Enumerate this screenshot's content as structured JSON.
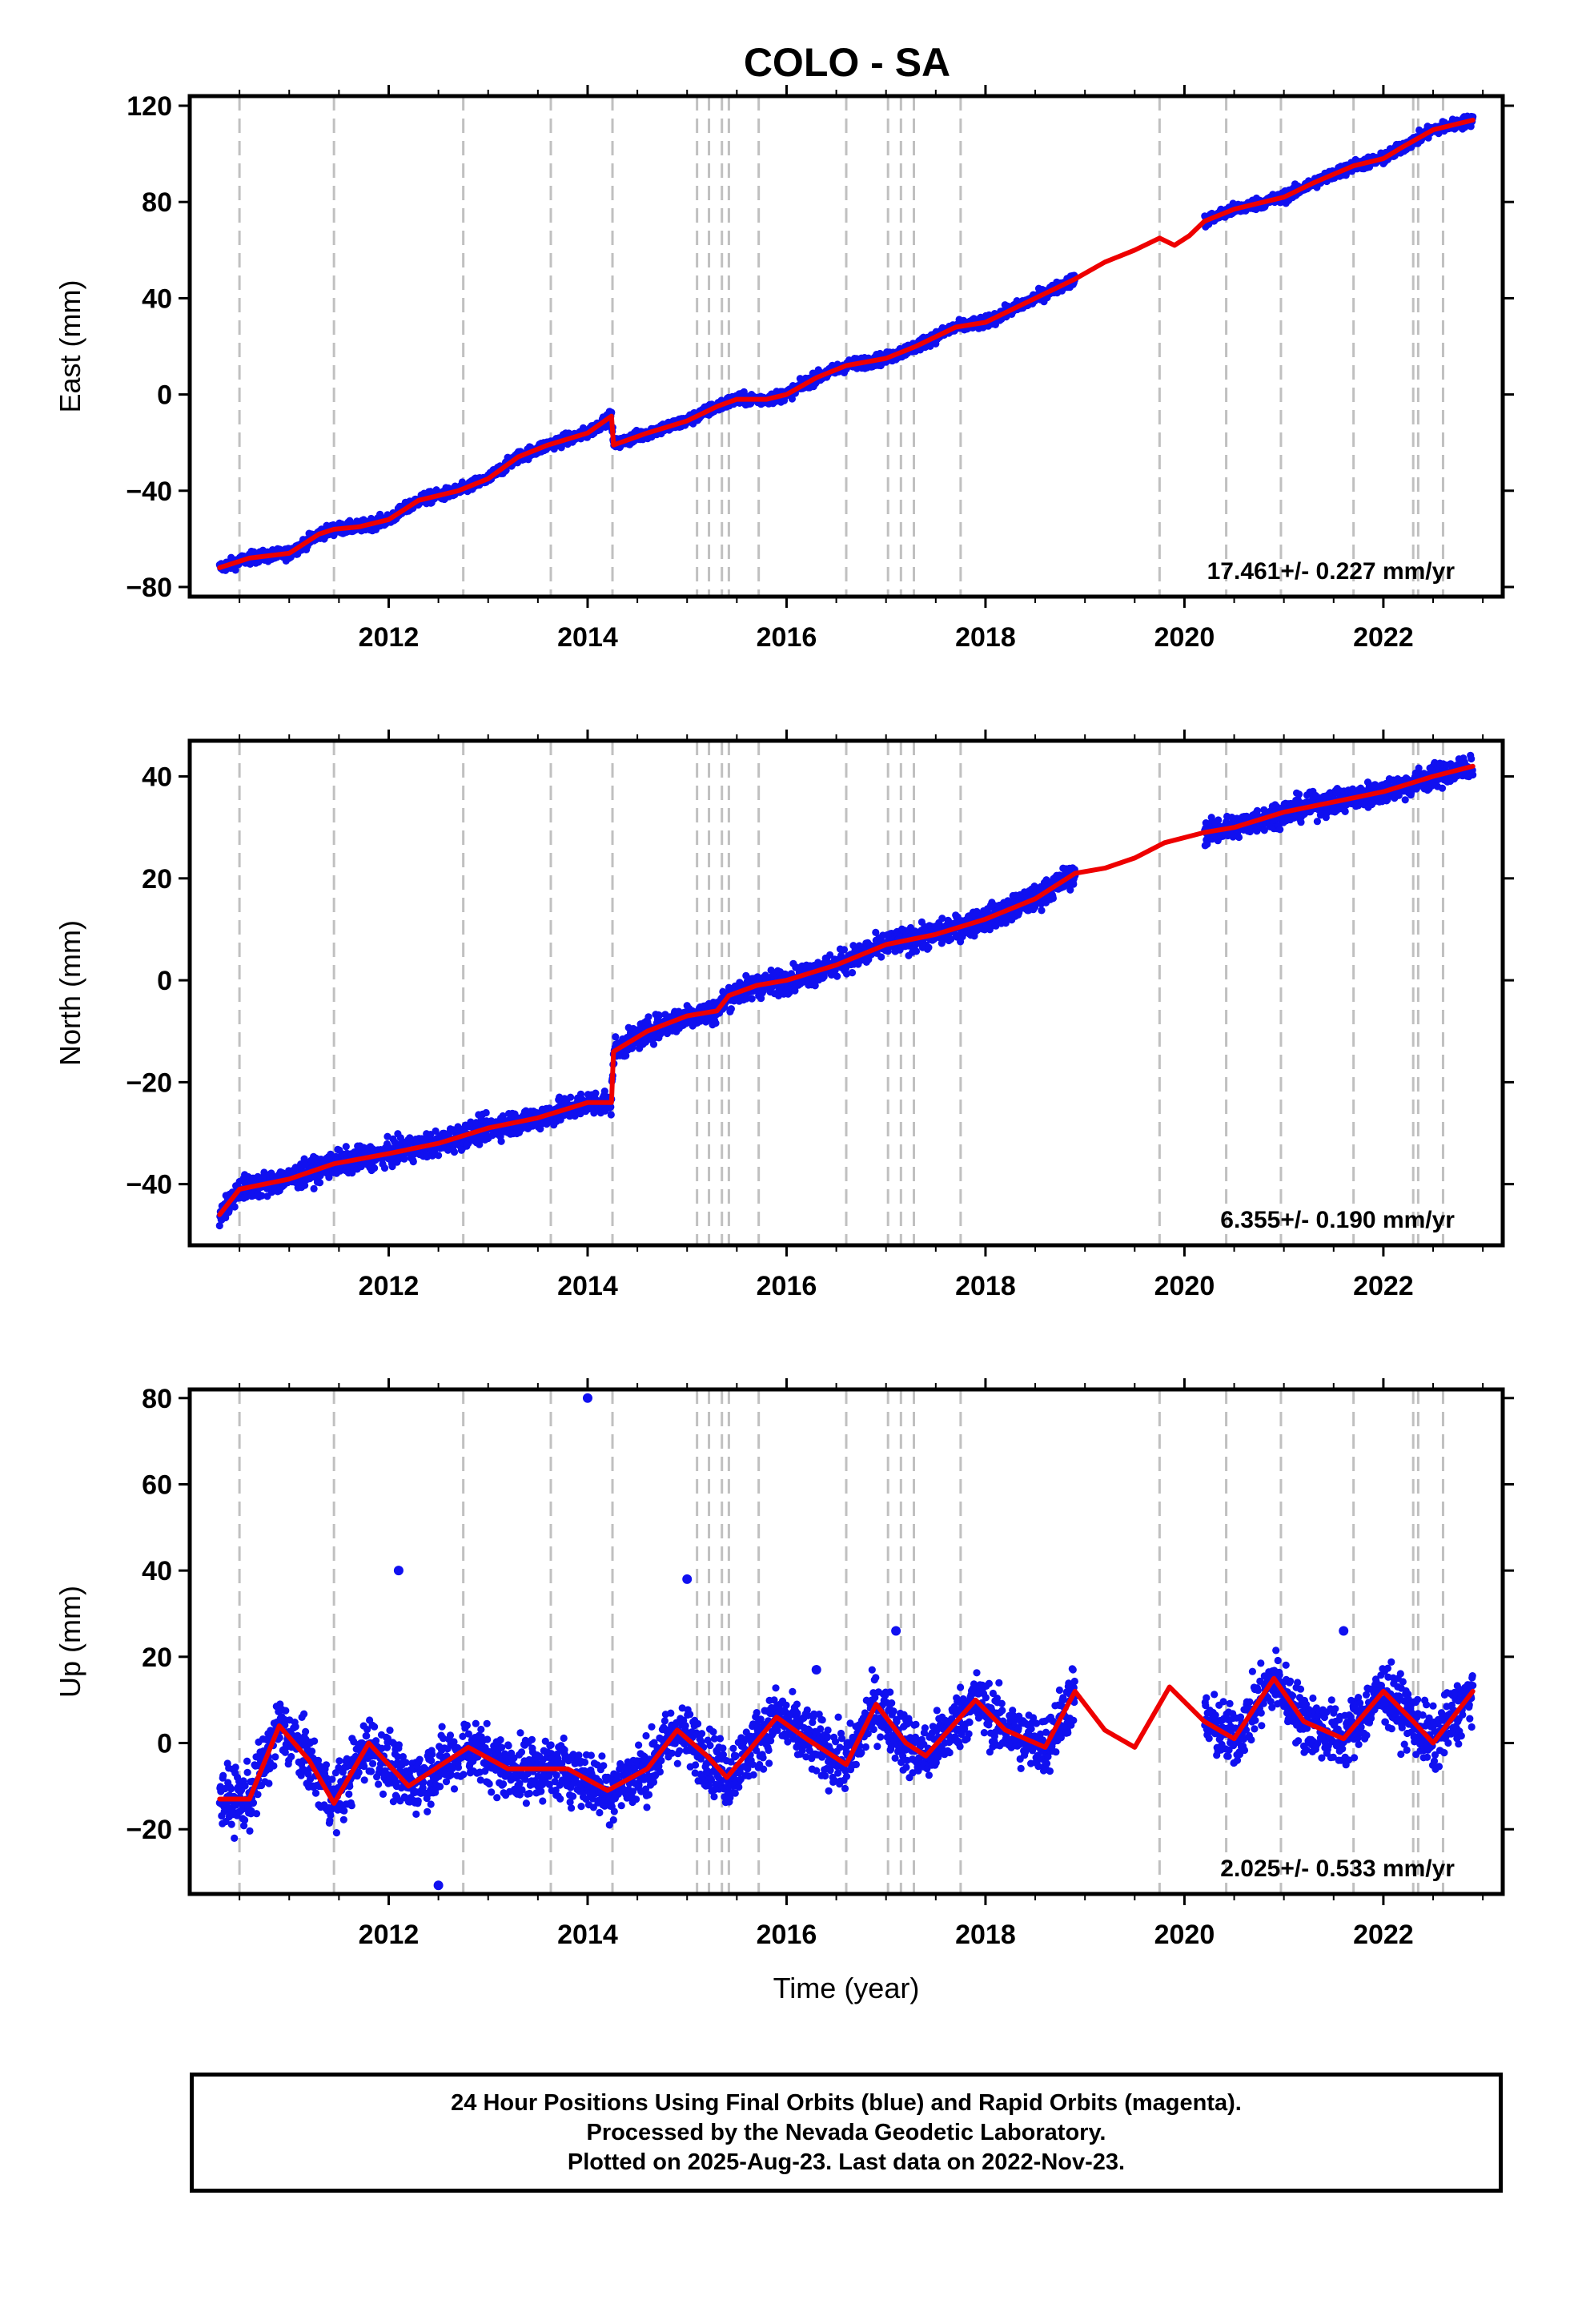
{
  "title": "COLO - SA",
  "colors": {
    "data_points": "#1010f0",
    "model_line": "#ee0000",
    "event_lines": "#c0c0c0",
    "frame": "#000000"
  },
  "footer": {
    "line1": "24 Hour Positions Using Final Orbits (blue) and Rapid Orbits (magenta).",
    "line2": "Processed by the Nevada Geodetic Laboratory.",
    "line3": "Plotted on 2025-Aug-23. Last data on 2022-Nov-23."
  },
  "chart_data": [
    {
      "type": "scatter",
      "panel": "east",
      "ylabel": "East (mm)",
      "xlabel": "",
      "rate_label": "17.461+/- 0.227 mm/yr",
      "xlim": [
        2010.0,
        2023.2
      ],
      "ylim": [
        -84,
        124
      ],
      "x_ticks": [
        2012,
        2014,
        2016,
        2018,
        2020,
        2022
      ],
      "x_tick_labels": [
        "2012",
        "2014",
        "2016",
        "2018",
        "2020",
        "2022"
      ],
      "y_ticks": [
        -80,
        -40,
        0,
        40,
        80,
        120
      ],
      "y_tick_labels": [
        "−80",
        "−40",
        "0",
        "40",
        "80",
        "120"
      ],
      "grid": false,
      "data_span": [
        2010.3,
        2022.9
      ],
      "data_gap": [
        2018.9,
        2020.2
      ],
      "event_lines_x": [
        2010.5,
        2011.45,
        2012.75,
        2013.63,
        2014.25,
        2015.1,
        2015.22,
        2015.35,
        2015.42,
        2015.72,
        2016.6,
        2017.02,
        2017.15,
        2017.28,
        2017.75,
        2019.75,
        2020.42,
        2020.97,
        2021.7,
        2022.3,
        2022.35,
        2022.6
      ],
      "series": [
        {
          "kind": "scatter",
          "x": [
            2010.3,
            2010.6,
            2011.0,
            2011.3,
            2011.45,
            2011.7,
            2012.0,
            2012.3,
            2012.7,
            2013.0,
            2013.3,
            2013.6,
            2014.0,
            2014.24,
            2014.26,
            2014.6,
            2015.0,
            2015.3,
            2015.5,
            2015.8,
            2016.0,
            2016.3,
            2016.6,
            2017.0,
            2017.3,
            2017.7,
            2018.0,
            2018.3,
            2018.6,
            2018.9,
            2020.2,
            2020.5,
            2020.8,
            2021.0,
            2021.3,
            2021.7,
            2022.0,
            2022.2,
            2022.5,
            2022.9
          ],
          "y": [
            -72,
            -68,
            -66,
            -58,
            -56,
            -55,
            -52,
            -44,
            -40,
            -35,
            -26,
            -21,
            -16,
            -9,
            -21,
            -16,
            -11,
            -5,
            -2,
            -2,
            0,
            7,
            12,
            15,
            20,
            28,
            30,
            36,
            42,
            48,
            72,
            77,
            80,
            82,
            88,
            95,
            98,
            103,
            110,
            114
          ]
        },
        {
          "kind": "line",
          "x": [
            2010.3,
            2010.6,
            2011.0,
            2011.3,
            2011.45,
            2011.7,
            2012.0,
            2012.3,
            2012.7,
            2013.0,
            2013.3,
            2013.6,
            2014.0,
            2014.24,
            2014.26,
            2014.6,
            2015.0,
            2015.3,
            2015.5,
            2015.8,
            2016.0,
            2016.3,
            2016.6,
            2017.0,
            2017.3,
            2017.7,
            2018.0,
            2018.3,
            2018.6,
            2018.9,
            2019.2,
            2019.5,
            2019.75,
            2019.9,
            2020.05,
            2020.2,
            2020.5,
            2020.8,
            2021.0,
            2021.3,
            2021.7,
            2022.0,
            2022.2,
            2022.5,
            2022.9
          ],
          "y": [
            -72,
            -68,
            -66,
            -58,
            -56,
            -55,
            -52,
            -44,
            -40,
            -35,
            -26,
            -21,
            -16,
            -9,
            -21,
            -16,
            -11,
            -5,
            -2,
            -2,
            0,
            7,
            12,
            15,
            20,
            28,
            30,
            36,
            42,
            48,
            55,
            60,
            65,
            62,
            66,
            72,
            77,
            80,
            82,
            88,
            95,
            98,
            103,
            110,
            114
          ]
        }
      ]
    },
    {
      "type": "scatter",
      "panel": "north",
      "ylabel": "North (mm)",
      "xlabel": "",
      "rate_label": "6.355+/- 0.190 mm/yr",
      "xlim": [
        2010.0,
        2023.2
      ],
      "ylim": [
        -52,
        47
      ],
      "x_ticks": [
        2012,
        2014,
        2016,
        2018,
        2020,
        2022
      ],
      "x_tick_labels": [
        "2012",
        "2014",
        "2016",
        "2018",
        "2020",
        "2022"
      ],
      "y_ticks": [
        -40,
        -20,
        0,
        20,
        40
      ],
      "y_tick_labels": [
        "−40",
        "−20",
        "0",
        "20",
        "40"
      ],
      "grid": false,
      "data_span": [
        2010.3,
        2022.9
      ],
      "data_gap": [
        2018.9,
        2020.2
      ],
      "event_lines_x": [
        2010.5,
        2011.45,
        2012.75,
        2013.63,
        2014.25,
        2015.1,
        2015.22,
        2015.35,
        2015.42,
        2015.72,
        2016.6,
        2017.02,
        2017.15,
        2017.28,
        2017.75,
        2019.75,
        2020.42,
        2020.97,
        2021.7,
        2022.3,
        2022.35,
        2022.6
      ],
      "series": [
        {
          "kind": "scatter",
          "x": [
            2010.3,
            2010.5,
            2011.0,
            2011.45,
            2012.0,
            2012.5,
            2013.0,
            2013.5,
            2014.0,
            2014.24,
            2014.26,
            2014.6,
            2015.0,
            2015.3,
            2015.42,
            2015.7,
            2016.0,
            2016.5,
            2017.0,
            2017.5,
            2018.0,
            2018.5,
            2018.9,
            2020.2,
            2020.5,
            2021.0,
            2021.5,
            2022.0,
            2022.5,
            2022.9
          ],
          "y": [
            -46,
            -41,
            -39,
            -36,
            -34,
            -32,
            -29,
            -27,
            -24,
            -24,
            -14,
            -10,
            -7,
            -6,
            -3,
            -1,
            0,
            3,
            7,
            9,
            12,
            16,
            21,
            29,
            30,
            33,
            35,
            37,
            40,
            42
          ]
        },
        {
          "kind": "line",
          "x": [
            2010.3,
            2010.5,
            2011.0,
            2011.45,
            2012.0,
            2012.5,
            2013.0,
            2013.5,
            2014.0,
            2014.24,
            2014.26,
            2014.6,
            2015.0,
            2015.3,
            2015.42,
            2015.7,
            2016.0,
            2016.5,
            2017.0,
            2017.5,
            2018.0,
            2018.5,
            2018.9,
            2019.2,
            2019.5,
            2019.8,
            2020.2,
            2020.5,
            2021.0,
            2021.5,
            2022.0,
            2022.5,
            2022.9
          ],
          "y": [
            -46,
            -41,
            -39,
            -36,
            -34,
            -32,
            -29,
            -27,
            -24,
            -24,
            -14,
            -10,
            -7,
            -6,
            -3,
            -1,
            0,
            3,
            7,
            9,
            12,
            16,
            21,
            22,
            24,
            27,
            29,
            30,
            33,
            35,
            37,
            40,
            42
          ]
        }
      ]
    },
    {
      "type": "scatter",
      "panel": "up",
      "ylabel": "Up (mm)",
      "xlabel": "Time (year)",
      "rate_label": "2.025+/- 0.533 mm/yr",
      "xlim": [
        2010.0,
        2023.2
      ],
      "ylim": [
        -35,
        82
      ],
      "x_ticks": [
        2012,
        2014,
        2016,
        2018,
        2020,
        2022
      ],
      "x_tick_labels": [
        "2012",
        "2014",
        "2016",
        "2018",
        "2020",
        "2022"
      ],
      "y_ticks": [
        -20,
        0,
        20,
        40,
        60,
        80
      ],
      "y_tick_labels": [
        "−20",
        "0",
        "20",
        "40",
        "60",
        "80"
      ],
      "grid": false,
      "data_span": [
        2010.3,
        2022.9
      ],
      "data_gap": [
        2018.9,
        2020.2
      ],
      "event_lines_x": [
        2010.5,
        2011.45,
        2012.75,
        2013.63,
        2014.25,
        2015.1,
        2015.22,
        2015.35,
        2015.42,
        2015.72,
        2016.6,
        2017.02,
        2017.15,
        2017.28,
        2017.75,
        2019.75,
        2020.42,
        2020.97,
        2021.7,
        2022.3,
        2022.35,
        2022.6
      ],
      "outliers": {
        "x": [
          2014.0,
          2012.1,
          2015.0,
          2012.5,
          2017.1,
          2016.3,
          2021.6
        ],
        "y": [
          80,
          40,
          38,
          -33,
          26,
          17,
          26
        ]
      },
      "series": [
        {
          "kind": "scatter",
          "x": [
            2010.3,
            2010.6,
            2010.9,
            2011.2,
            2011.45,
            2011.8,
            2012.2,
            2012.8,
            2013.2,
            2013.8,
            2014.2,
            2014.6,
            2014.9,
            2015.2,
            2015.4,
            2015.9,
            2016.2,
            2016.6,
            2016.9,
            2017.2,
            2017.4,
            2017.9,
            2018.2,
            2018.6,
            2018.9,
            2020.2,
            2020.5,
            2020.9,
            2021.2,
            2021.6,
            2022.0,
            2022.3,
            2022.5,
            2022.9
          ],
          "y": [
            -13,
            -13,
            4,
            -4,
            -14,
            0,
            -10,
            -1,
            -6,
            -6,
            -11,
            -6,
            3,
            -3,
            -8,
            6,
            1,
            -5,
            9,
            0,
            -3,
            10,
            3,
            -1,
            12,
            5,
            1,
            15,
            5,
            1,
            12,
            5,
            0,
            12
          ]
        },
        {
          "kind": "line",
          "x": [
            2010.3,
            2010.6,
            2010.9,
            2011.2,
            2011.45,
            2011.8,
            2012.2,
            2012.8,
            2013.2,
            2013.8,
            2014.2,
            2014.6,
            2014.9,
            2015.2,
            2015.4,
            2015.9,
            2016.2,
            2016.6,
            2016.9,
            2017.2,
            2017.4,
            2017.9,
            2018.2,
            2018.6,
            2018.9,
            2019.2,
            2019.5,
            2019.85,
            2020.2,
            2020.5,
            2020.9,
            2021.2,
            2021.6,
            2022.0,
            2022.3,
            2022.5,
            2022.9
          ],
          "y": [
            -13,
            -13,
            4,
            -4,
            -14,
            0,
            -10,
            -1,
            -6,
            -6,
            -11,
            -6,
            3,
            -3,
            -8,
            6,
            1,
            -5,
            9,
            0,
            -3,
            10,
            3,
            -1,
            12,
            3,
            -1,
            13,
            5,
            1,
            15,
            5,
            1,
            12,
            5,
            0,
            12
          ]
        }
      ]
    }
  ]
}
